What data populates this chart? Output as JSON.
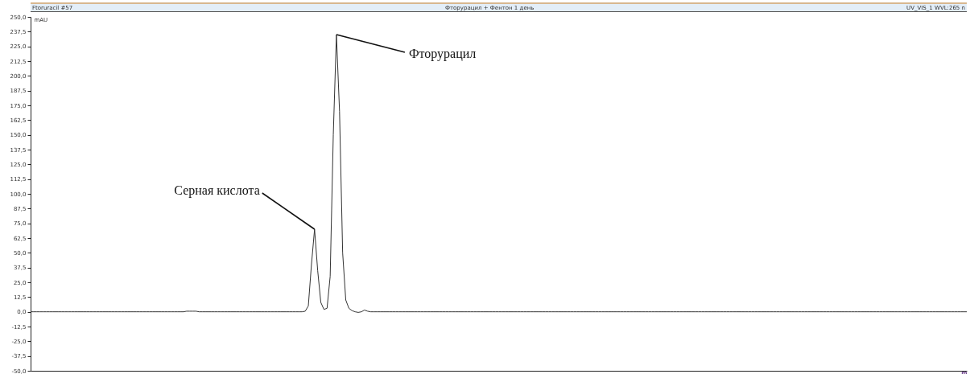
{
  "chart_data": {
    "type": "line",
    "title": "Фторурацил + Фентон 1 день",
    "ylabel": "mAU",
    "xlabel": "m",
    "annotations": [
      "Ftoruracil #57",
      "UV_VIS_1 WVL:265 n",
      "Серная кислота",
      "Фторурацил"
    ],
    "categories": [
      null,
      null,
      null,
      null,
      null,
      null,
      null,
      null,
      null,
      null,
      null,
      null,
      null,
      null,
      null,
      null,
      null,
      null,
      null,
      null,
      null,
      null,
      null,
      null,
      null,
      null,
      null,
      null,
      null,
      null,
      null,
      null,
      null,
      null,
      null,
      null,
      null,
      null,
      null,
      null,
      null,
      null,
      null,
      null,
      null,
      null,
      null,
      null,
      null,
      null,
      null,
      null,
      null,
      null,
      null,
      null,
      null,
      null,
      null,
      null,
      null,
      null,
      null,
      null,
      null,
      null,
      null,
      null,
      null,
      null,
      null,
      null,
      null,
      null,
      null,
      null,
      null,
      null,
      null,
      null,
      null,
      null,
      null,
      null,
      null,
      null,
      null,
      null,
      null,
      null,
      null,
      null,
      null,
      null,
      null,
      null,
      null,
      null,
      null,
      null,
      null,
      null,
      null,
      null,
      null,
      null,
      null,
      null,
      null,
      null,
      null,
      null,
      null,
      null,
      null,
      null,
      null,
      null,
      null,
      null,
      null,
      null,
      null,
      null,
      null,
      null,
      null,
      null,
      null,
      null,
      null,
      null,
      null,
      null,
      null,
      null,
      null,
      null,
      null,
      null,
      null,
      null,
      null,
      null,
      null,
      null,
      null,
      null,
      null,
      null,
      null,
      null,
      null,
      null,
      null,
      null,
      null,
      null,
      null,
      null,
      null,
      null,
      null,
      null,
      null,
      null,
      null,
      null,
      null,
      null,
      null,
      null,
      null,
      null,
      null,
      null,
      null,
      null,
      null,
      null,
      null,
      null,
      null,
      null,
      null,
      null,
      null,
      null,
      null,
      null,
      null,
      null,
      null,
      null,
      null,
      null,
      null,
      null,
      null,
      null,
      null,
      null,
      null,
      null,
      null,
      null,
      null,
      null,
      null,
      null,
      null,
      null,
      null,
      null,
      null,
      null,
      null,
      null,
      null,
      null,
      null,
      null,
      null,
      null,
      null,
      null,
      null,
      null,
      null,
      null,
      null,
      null,
      null,
      null,
      null,
      null,
      null,
      null,
      null,
      null,
      null,
      null,
      null,
      null,
      null,
      null,
      null,
      null,
      null,
      null,
      null,
      null,
      null,
      null,
      null,
      null,
      null,
      null,
      null,
      null,
      null,
      null,
      null,
      null,
      null,
      null,
      null,
      null,
      null,
      null,
      null,
      null,
      null,
      null,
      null,
      null,
      null,
      null,
      null,
      null,
      null,
      null,
      null,
      null,
      null,
      null,
      null,
      null,
      null,
      null,
      null,
      null,
      null,
      null,
      null,
      null,
      null,
      null,
      null,
      null,
      null
    ],
    "series": [
      {
        "color": "#333333",
        "values": [
          0,
          0,
          0,
          0,
          0,
          0,
          0,
          0,
          0,
          0,
          0,
          0,
          0,
          0,
          0,
          0,
          0,
          0,
          0,
          0,
          0,
          0,
          0,
          0,
          0,
          0,
          0,
          0,
          0,
          0,
          0,
          0,
          0,
          0,
          0,
          0,
          0,
          0,
          0,
          0,
          0,
          0,
          0,
          0,
          0,
          0,
          0,
          0,
          0,
          0,
          0.5,
          0.5,
          0.5,
          0.5,
          0,
          0,
          0,
          0,
          0,
          0,
          0,
          0,
          0,
          0,
          0,
          0,
          0,
          0,
          0,
          0,
          0,
          0,
          0,
          0,
          0,
          0,
          0,
          0,
          0,
          0,
          0,
          0,
          0,
          0,
          0,
          0,
          0,
          0,
          0.5,
          5,
          40,
          70,
          35,
          8,
          2,
          3,
          30,
          150,
          235,
          170,
          50,
          10,
          3,
          1,
          0,
          -0.5,
          0,
          1.5,
          0.5,
          0,
          0,
          0,
          0,
          0,
          0,
          0,
          0,
          0,
          0,
          0,
          0,
          0,
          0,
          0,
          0,
          0,
          0,
          0,
          0,
          0,
          0,
          0,
          0,
          0,
          0,
          0,
          0,
          0,
          0,
          0,
          0,
          0,
          0,
          0,
          0,
          0,
          0,
          0,
          0,
          0,
          0,
          0,
          0,
          0,
          0,
          0,
          0,
          0,
          0,
          0,
          0,
          0,
          0,
          0,
          0,
          0,
          0,
          0,
          0,
          0,
          0,
          0,
          0,
          0,
          0,
          0,
          0,
          0,
          0,
          0,
          0,
          0,
          0,
          0,
          0,
          0,
          0,
          0,
          0,
          0,
          0,
          0,
          0,
          0,
          0,
          0,
          0,
          0,
          0,
          0,
          0,
          0,
          0,
          0,
          0,
          0,
          0,
          0,
          0,
          0,
          0,
          0,
          0,
          0,
          0,
          0,
          0,
          0,
          0,
          0,
          0,
          0,
          0,
          0,
          0,
          0,
          0,
          0,
          0,
          0,
          0,
          0,
          0,
          0,
          0,
          0,
          0,
          0,
          0,
          0,
          0,
          0,
          0,
          0,
          0,
          0,
          0,
          0,
          0,
          0,
          0,
          0,
          0,
          0,
          0,
          0,
          0,
          0,
          0,
          0,
          0,
          0,
          0,
          0,
          0,
          0,
          0,
          0,
          0,
          0,
          0,
          0,
          0,
          0,
          0,
          0,
          0,
          0,
          0,
          0,
          0,
          0,
          0,
          0,
          0,
          0,
          0,
          0,
          0,
          0,
          0,
          0,
          0,
          0,
          0,
          0,
          0,
          0,
          0,
          0,
          0
        ]
      }
    ],
    "ylim": [
      -50,
      250
    ],
    "yticks": [
      {
        "value": 250,
        "label": "250,0"
      },
      {
        "value": 237.5,
        "label": "237,5"
      },
      {
        "value": 225,
        "label": "225,0"
      },
      {
        "value": 212.5,
        "label": "212,5"
      },
      {
        "value": 200,
        "label": "200,0"
      },
      {
        "value": 187.5,
        "label": "187,5"
      },
      {
        "value": 175,
        "label": "175,0"
      },
      {
        "value": 162.5,
        "label": "162,5"
      },
      {
        "value": 150,
        "label": "150,0"
      },
      {
        "value": 137.5,
        "label": "137,5"
      },
      {
        "value": 125,
        "label": "125,0"
      },
      {
        "value": 112.5,
        "label": "112,5"
      },
      {
        "value": 100,
        "label": "100,0"
      },
      {
        "value": 87.5,
        "label": "87,5"
      },
      {
        "value": 75,
        "label": "75,0"
      },
      {
        "value": 62.5,
        "label": "62,5"
      },
      {
        "value": 50,
        "label": "50,0"
      },
      {
        "value": 37.5,
        "label": "37,5"
      },
      {
        "value": 25,
        "label": "25,0"
      },
      {
        "value": 12.5,
        "label": "12,5"
      },
      {
        "value": 0,
        "label": "0,0"
      },
      {
        "value": -12.5,
        "label": "-12,5"
      },
      {
        "value": -25,
        "label": "-25,0"
      },
      {
        "value": -37.5,
        "label": "-37,5"
      },
      {
        "value": -50,
        "label": "-50,0"
      }
    ],
    "tick_labels": "y",
    "grid": false
  }
}
